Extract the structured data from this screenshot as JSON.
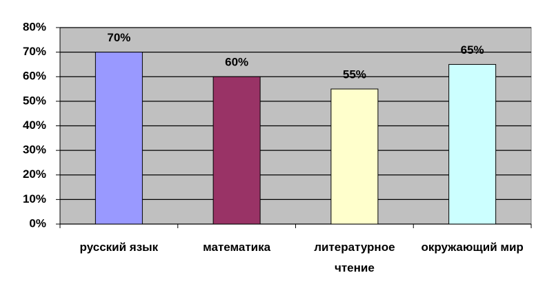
{
  "chart_data": {
    "type": "bar",
    "categories": [
      "русский язык",
      "математика",
      "литературное чтение",
      "окружающий мир"
    ],
    "values": [
      70,
      60,
      55,
      65
    ],
    "value_labels": [
      "70%",
      "60%",
      "55%",
      "65%"
    ],
    "colors": [
      "#9999ff",
      "#993366",
      "#ffffcc",
      "#ccffff"
    ],
    "ylim": [
      0,
      80
    ],
    "yticks": [
      {
        "value": 0,
        "label": "0%"
      },
      {
        "value": 10,
        "label": "10%"
      },
      {
        "value": 20,
        "label": "20%"
      },
      {
        "value": 30,
        "label": "30%"
      },
      {
        "value": 40,
        "label": "40%"
      },
      {
        "value": 50,
        "label": "50%"
      },
      {
        "value": 60,
        "label": "60%"
      },
      {
        "value": 70,
        "label": "70%"
      },
      {
        "value": 80,
        "label": "80%"
      }
    ],
    "grid": true
  }
}
